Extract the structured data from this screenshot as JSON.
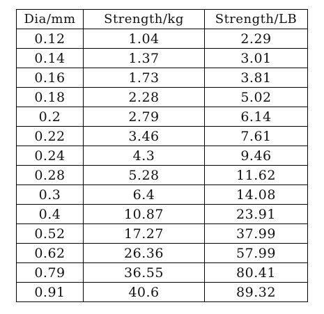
{
  "table": {
    "headers": [
      "Dia/mm",
      "Strength/kg",
      "Strength/LB"
    ],
    "rows": [
      [
        "0.12",
        "1.04",
        "2.29"
      ],
      [
        "0.14",
        "1.37",
        "3.01"
      ],
      [
        "0.16",
        "1.73",
        "3.81"
      ],
      [
        "0.18",
        "2.28",
        "5.02"
      ],
      [
        "0.2",
        "2.79",
        "6.14"
      ],
      [
        "0.22",
        "3.46",
        "7.61"
      ],
      [
        "0.24",
        "4.3",
        "9.46"
      ],
      [
        "0.28",
        "5.28",
        "11.62"
      ],
      [
        "0.3",
        "6.4",
        "14.08"
      ],
      [
        "0.4",
        "10.87",
        "23.91"
      ],
      [
        "0.52",
        "17.27",
        "37.99"
      ],
      [
        "0.62",
        "26.36",
        "57.99"
      ],
      [
        "0.79",
        "36.55",
        "80.41"
      ],
      [
        "0.91",
        "40.6",
        "89.32"
      ]
    ]
  }
}
